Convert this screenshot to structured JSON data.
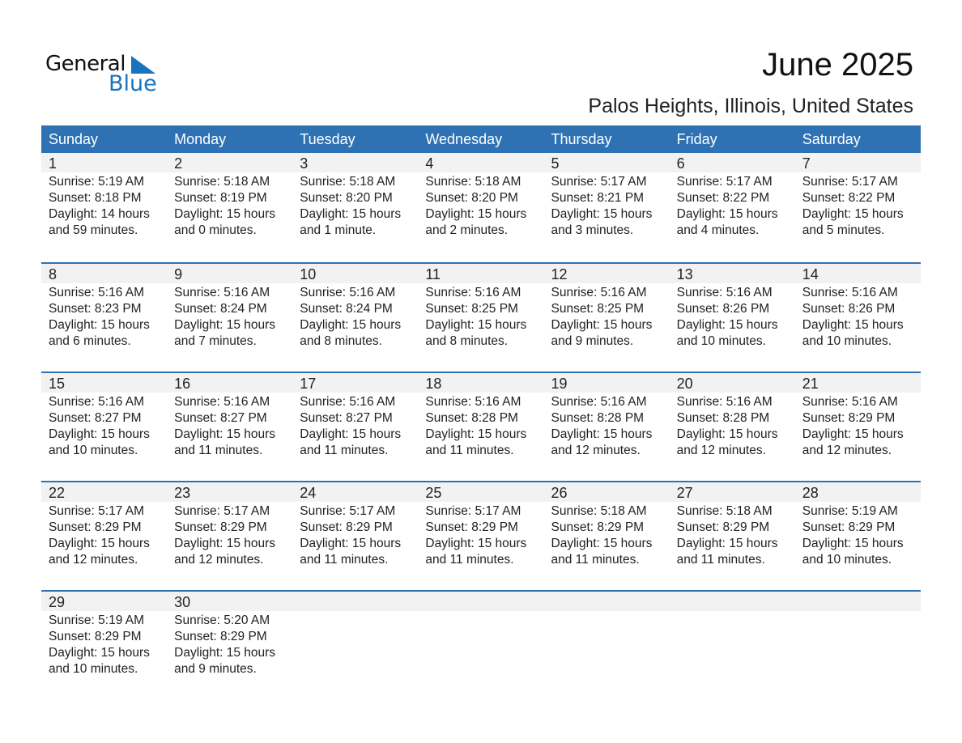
{
  "logo": {
    "text1": "General",
    "text2": "Blue",
    "color": "#1a73bf"
  },
  "title": "June 2025",
  "subtitle": "Palos Heights, Illinois, United States",
  "header_color": "#2e72b3",
  "weekdays": [
    "Sunday",
    "Monday",
    "Tuesday",
    "Wednesday",
    "Thursday",
    "Friday",
    "Saturday"
  ],
  "weeks": [
    [
      {
        "day": "1",
        "sunrise": "Sunrise: 5:19 AM",
        "sunset": "Sunset: 8:18 PM",
        "daylight": "Daylight: 14 hours",
        "minutes": "and 59 minutes."
      },
      {
        "day": "2",
        "sunrise": "Sunrise: 5:18 AM",
        "sunset": "Sunset: 8:19 PM",
        "daylight": "Daylight: 15 hours",
        "minutes": "and 0 minutes."
      },
      {
        "day": "3",
        "sunrise": "Sunrise: 5:18 AM",
        "sunset": "Sunset: 8:20 PM",
        "daylight": "Daylight: 15 hours",
        "minutes": "and 1 minute."
      },
      {
        "day": "4",
        "sunrise": "Sunrise: 5:18 AM",
        "sunset": "Sunset: 8:20 PM",
        "daylight": "Daylight: 15 hours",
        "minutes": "and 2 minutes."
      },
      {
        "day": "5",
        "sunrise": "Sunrise: 5:17 AM",
        "sunset": "Sunset: 8:21 PM",
        "daylight": "Daylight: 15 hours",
        "minutes": "and 3 minutes."
      },
      {
        "day": "6",
        "sunrise": "Sunrise: 5:17 AM",
        "sunset": "Sunset: 8:22 PM",
        "daylight": "Daylight: 15 hours",
        "minutes": "and 4 minutes."
      },
      {
        "day": "7",
        "sunrise": "Sunrise: 5:17 AM",
        "sunset": "Sunset: 8:22 PM",
        "daylight": "Daylight: 15 hours",
        "minutes": "and 5 minutes."
      }
    ],
    [
      {
        "day": "8",
        "sunrise": "Sunrise: 5:16 AM",
        "sunset": "Sunset: 8:23 PM",
        "daylight": "Daylight: 15 hours",
        "minutes": "and 6 minutes."
      },
      {
        "day": "9",
        "sunrise": "Sunrise: 5:16 AM",
        "sunset": "Sunset: 8:24 PM",
        "daylight": "Daylight: 15 hours",
        "minutes": "and 7 minutes."
      },
      {
        "day": "10",
        "sunrise": "Sunrise: 5:16 AM",
        "sunset": "Sunset: 8:24 PM",
        "daylight": "Daylight: 15 hours",
        "minutes": "and 8 minutes."
      },
      {
        "day": "11",
        "sunrise": "Sunrise: 5:16 AM",
        "sunset": "Sunset: 8:25 PM",
        "daylight": "Daylight: 15 hours",
        "minutes": "and 8 minutes."
      },
      {
        "day": "12",
        "sunrise": "Sunrise: 5:16 AM",
        "sunset": "Sunset: 8:25 PM",
        "daylight": "Daylight: 15 hours",
        "minutes": "and 9 minutes."
      },
      {
        "day": "13",
        "sunrise": "Sunrise: 5:16 AM",
        "sunset": "Sunset: 8:26 PM",
        "daylight": "Daylight: 15 hours",
        "minutes": "and 10 minutes."
      },
      {
        "day": "14",
        "sunrise": "Sunrise: 5:16 AM",
        "sunset": "Sunset: 8:26 PM",
        "daylight": "Daylight: 15 hours",
        "minutes": "and 10 minutes."
      }
    ],
    [
      {
        "day": "15",
        "sunrise": "Sunrise: 5:16 AM",
        "sunset": "Sunset: 8:27 PM",
        "daylight": "Daylight: 15 hours",
        "minutes": "and 10 minutes."
      },
      {
        "day": "16",
        "sunrise": "Sunrise: 5:16 AM",
        "sunset": "Sunset: 8:27 PM",
        "daylight": "Daylight: 15 hours",
        "minutes": "and 11 minutes."
      },
      {
        "day": "17",
        "sunrise": "Sunrise: 5:16 AM",
        "sunset": "Sunset: 8:27 PM",
        "daylight": "Daylight: 15 hours",
        "minutes": "and 11 minutes."
      },
      {
        "day": "18",
        "sunrise": "Sunrise: 5:16 AM",
        "sunset": "Sunset: 8:28 PM",
        "daylight": "Daylight: 15 hours",
        "minutes": "and 11 minutes."
      },
      {
        "day": "19",
        "sunrise": "Sunrise: 5:16 AM",
        "sunset": "Sunset: 8:28 PM",
        "daylight": "Daylight: 15 hours",
        "minutes": "and 12 minutes."
      },
      {
        "day": "20",
        "sunrise": "Sunrise: 5:16 AM",
        "sunset": "Sunset: 8:28 PM",
        "daylight": "Daylight: 15 hours",
        "minutes": "and 12 minutes."
      },
      {
        "day": "21",
        "sunrise": "Sunrise: 5:16 AM",
        "sunset": "Sunset: 8:29 PM",
        "daylight": "Daylight: 15 hours",
        "minutes": "and 12 minutes."
      }
    ],
    [
      {
        "day": "22",
        "sunrise": "Sunrise: 5:17 AM",
        "sunset": "Sunset: 8:29 PM",
        "daylight": "Daylight: 15 hours",
        "minutes": "and 12 minutes."
      },
      {
        "day": "23",
        "sunrise": "Sunrise: 5:17 AM",
        "sunset": "Sunset: 8:29 PM",
        "daylight": "Daylight: 15 hours",
        "minutes": "and 12 minutes."
      },
      {
        "day": "24",
        "sunrise": "Sunrise: 5:17 AM",
        "sunset": "Sunset: 8:29 PM",
        "daylight": "Daylight: 15 hours",
        "minutes": "and 11 minutes."
      },
      {
        "day": "25",
        "sunrise": "Sunrise: 5:17 AM",
        "sunset": "Sunset: 8:29 PM",
        "daylight": "Daylight: 15 hours",
        "minutes": "and 11 minutes."
      },
      {
        "day": "26",
        "sunrise": "Sunrise: 5:18 AM",
        "sunset": "Sunset: 8:29 PM",
        "daylight": "Daylight: 15 hours",
        "minutes": "and 11 minutes."
      },
      {
        "day": "27",
        "sunrise": "Sunrise: 5:18 AM",
        "sunset": "Sunset: 8:29 PM",
        "daylight": "Daylight: 15 hours",
        "minutes": "and 11 minutes."
      },
      {
        "day": "28",
        "sunrise": "Sunrise: 5:19 AM",
        "sunset": "Sunset: 8:29 PM",
        "daylight": "Daylight: 15 hours",
        "minutes": "and 10 minutes."
      }
    ],
    [
      {
        "day": "29",
        "sunrise": "Sunrise: 5:19 AM",
        "sunset": "Sunset: 8:29 PM",
        "daylight": "Daylight: 15 hours",
        "minutes": "and 10 minutes."
      },
      {
        "day": "30",
        "sunrise": "Sunrise: 5:20 AM",
        "sunset": "Sunset: 8:29 PM",
        "daylight": "Daylight: 15 hours",
        "minutes": "and 9 minutes."
      }
    ]
  ]
}
